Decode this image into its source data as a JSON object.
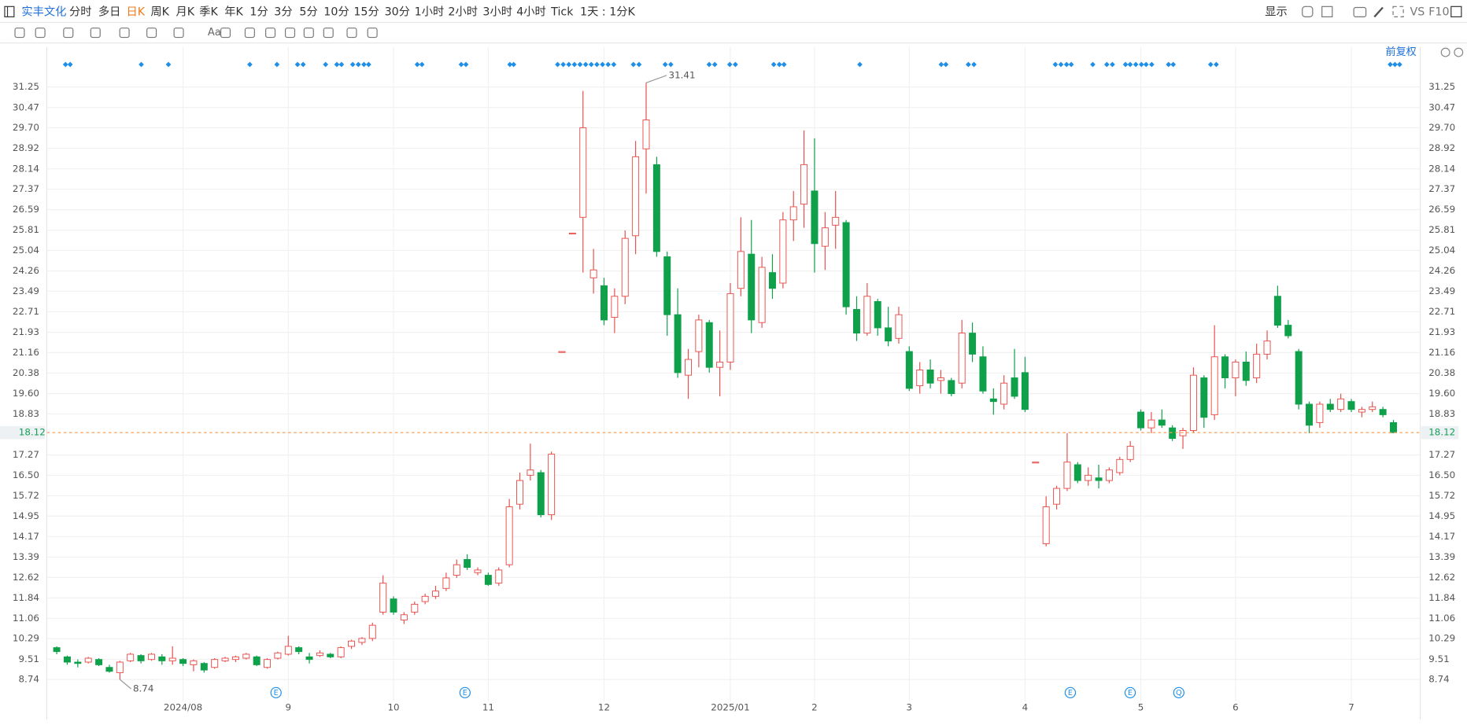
{
  "toolbar": {
    "stock": "实丰文化",
    "periods": [
      "分时",
      "多日",
      "日K",
      "周K",
      "月K",
      "季K",
      "年K",
      "1分",
      "3分",
      "5分",
      "10分",
      "15分",
      "30分",
      "1小时",
      "2小时",
      "3小时",
      "4小时",
      "Tick"
    ],
    "range": "1天 : 1分K",
    "display": "显示",
    "vs": "VS",
    "f10": "F10",
    "text_tool": "Aa"
  },
  "adjust": "前复权",
  "events": [
    "E",
    "E",
    "E",
    "E",
    "Q"
  ],
  "chart_data": {
    "type": "candlestick",
    "up_color": "#e8504c",
    "down_color": "#0fa04a",
    "grid": true,
    "categories": [
      null,
      null,
      null,
      null,
      null,
      null,
      null,
      null,
      null,
      null,
      null,
      null,
      "2024/08",
      null,
      null,
      null,
      null,
      null,
      null,
      null,
      null,
      null,
      "9",
      null,
      null,
      null,
      null,
      null,
      null,
      null,
      null,
      null,
      "10",
      null,
      null,
      null,
      null,
      null,
      null,
      null,
      null,
      "11",
      null,
      null,
      null,
      null,
      null,
      null,
      null,
      null,
      null,
      null,
      "12",
      null,
      null,
      null,
      null,
      null,
      null,
      null,
      null,
      null,
      null,
      null,
      "2025/01",
      null,
      null,
      null,
      null,
      null,
      null,
      null,
      "2",
      null,
      null,
      null,
      null,
      null,
      null,
      null,
      null,
      "3",
      null,
      null,
      null,
      null,
      null,
      null,
      null,
      null,
      null,
      null,
      "4",
      null,
      null,
      null,
      null,
      null,
      null,
      null,
      null,
      null,
      null,
      "5",
      null,
      null,
      null,
      null,
      null,
      null,
      null,
      null,
      "6",
      null,
      null,
      null,
      null,
      null,
      null,
      null,
      null,
      null,
      null,
      "7",
      null,
      null,
      null,
      null
    ],
    "open": [
      9.95,
      9.6,
      9.4,
      9.4,
      9.5,
      9.2,
      9.0,
      9.45,
      9.65,
      9.5,
      9.6,
      9.45,
      9.5,
      9.3,
      9.35,
      9.2,
      9.45,
      9.5,
      9.55,
      9.6,
      9.2,
      9.55,
      9.7,
      9.95,
      9.6,
      9.65,
      9.7,
      9.6,
      10.0,
      10.15,
      10.3,
      11.3,
      11.8,
      11.0,
      11.3,
      11.7,
      11.9,
      12.2,
      12.7,
      13.3,
      12.8,
      12.7,
      12.4,
      13.1,
      15.4,
      16.5,
      16.6,
      15.0,
      21.2,
      25.7,
      26.3,
      24.0,
      23.7,
      22.5,
      23.3,
      25.6,
      28.9,
      28.3,
      24.8,
      22.6,
      20.3,
      21.2,
      22.3,
      20.6,
      20.8,
      23.6,
      24.9,
      22.3,
      24.2,
      23.8,
      26.2,
      26.8,
      27.3,
      25.2,
      26.0,
      26.1,
      22.8,
      21.9,
      23.1,
      22.1,
      21.7,
      21.2,
      19.9,
      20.5,
      20.1,
      20.1,
      20.0,
      21.9,
      21.0,
      19.4,
      19.2,
      20.2,
      20.4,
      17.0,
      13.9,
      15.4,
      16.0,
      16.9,
      16.3,
      16.4,
      16.3,
      16.6,
      17.1,
      18.9,
      18.3,
      18.6,
      18.3,
      18.0,
      18.2,
      20.2,
      18.8,
      21.0,
      20.2,
      20.8,
      20.2,
      21.1,
      23.3,
      22.2,
      21.2,
      19.2,
      18.5,
      19.2,
      19.0,
      19.3,
      18.9,
      19.0,
      19.0,
      18.5
    ],
    "high": [
      10.0,
      9.65,
      9.5,
      9.6,
      9.55,
      9.3,
      9.45,
      9.75,
      9.7,
      9.75,
      9.7,
      10.0,
      9.55,
      9.5,
      9.4,
      9.55,
      9.6,
      9.65,
      9.75,
      9.65,
      9.55,
      9.8,
      10.4,
      10.0,
      9.75,
      9.85,
      9.75,
      10.0,
      10.25,
      10.35,
      10.9,
      12.7,
      11.9,
      11.3,
      11.7,
      12.0,
      12.3,
      12.8,
      13.3,
      13.5,
      13.0,
      12.8,
      13.0,
      15.6,
      16.6,
      17.7,
      16.7,
      17.4,
      21.2,
      25.7,
      31.1,
      25.1,
      24.0,
      23.6,
      25.8,
      29.2,
      31.41,
      28.6,
      25.0,
      23.6,
      21.3,
      22.6,
      22.4,
      22.0,
      23.8,
      26.3,
      26.2,
      24.8,
      24.9,
      26.5,
      27.3,
      29.6,
      29.3,
      26.5,
      27.3,
      26.2,
      23.3,
      23.8,
      23.2,
      22.9,
      22.9,
      21.4,
      20.8,
      20.9,
      20.5,
      20.2,
      22.4,
      22.3,
      21.4,
      19.8,
      20.3,
      21.3,
      21.0,
      17.0,
      15.7,
      16.1,
      18.1,
      17.0,
      16.8,
      16.9,
      16.8,
      17.2,
      17.8,
      19.0,
      18.9,
      19.0,
      18.4,
      18.3,
      20.6,
      20.3,
      22.2,
      21.1,
      20.9,
      21.2,
      21.5,
      22.0,
      23.7,
      22.4,
      21.3,
      19.3,
      19.3,
      19.4,
      19.6,
      19.4,
      19.1,
      19.3,
      19.1,
      18.6
    ],
    "low": [
      9.7,
      9.3,
      9.2,
      9.35,
      9.25,
      9.0,
      8.74,
      9.4,
      9.35,
      9.45,
      9.3,
      9.3,
      9.25,
      9.05,
      9.0,
      9.15,
      9.4,
      9.4,
      9.5,
      9.25,
      9.15,
      9.5,
      9.65,
      9.7,
      9.35,
      9.6,
      9.55,
      9.55,
      9.9,
      10.05,
      10.2,
      11.2,
      11.2,
      10.85,
      11.2,
      11.6,
      11.8,
      12.1,
      12.6,
      12.9,
      12.7,
      12.3,
      12.3,
      13.0,
      15.2,
      16.3,
      14.9,
      14.8,
      21.2,
      25.7,
      24.2,
      23.4,
      22.2,
      21.9,
      23.0,
      24.9,
      27.2,
      24.8,
      21.8,
      20.2,
      19.4,
      20.6,
      20.4,
      19.5,
      20.5,
      23.3,
      21.9,
      22.1,
      23.2,
      23.6,
      25.4,
      25.9,
      24.2,
      24.3,
      25.1,
      22.6,
      21.6,
      21.8,
      21.8,
      21.4,
      21.5,
      19.7,
      19.6,
      19.8,
      19.6,
      19.5,
      19.8,
      20.8,
      19.6,
      18.8,
      19.0,
      19.4,
      18.9,
      17.0,
      13.8,
      15.2,
      15.9,
      16.2,
      16.1,
      16.0,
      16.2,
      16.5,
      17.0,
      18.2,
      18.1,
      18.3,
      17.8,
      17.5,
      18.1,
      18.3,
      18.6,
      19.8,
      19.5,
      19.9,
      20.0,
      20.9,
      22.1,
      21.7,
      19.0,
      18.1,
      18.3,
      18.9,
      18.9,
      18.9,
      18.7,
      18.9,
      18.7,
      18.1
    ],
    "close": [
      9.8,
      9.4,
      9.35,
      9.55,
      9.3,
      9.05,
      9.4,
      9.7,
      9.45,
      9.7,
      9.45,
      9.55,
      9.35,
      9.45,
      9.1,
      9.5,
      9.55,
      9.6,
      9.7,
      9.3,
      9.5,
      9.75,
      10.0,
      9.8,
      9.5,
      9.75,
      9.6,
      9.95,
      10.2,
      10.3,
      10.8,
      12.4,
      11.3,
      11.2,
      11.6,
      11.9,
      12.1,
      12.6,
      13.1,
      13.0,
      12.9,
      12.35,
      12.9,
      15.3,
      16.3,
      16.7,
      15.0,
      17.3,
      21.2,
      25.7,
      29.7,
      24.3,
      22.4,
      23.3,
      25.5,
      28.6,
      30.0,
      25.0,
      22.6,
      20.4,
      20.9,
      22.4,
      20.6,
      20.8,
      23.4,
      25.0,
      22.4,
      24.4,
      23.6,
      26.2,
      26.7,
      28.3,
      25.3,
      25.9,
      26.3,
      22.9,
      21.9,
      23.3,
      22.1,
      21.6,
      22.6,
      19.8,
      20.5,
      20.0,
      20.2,
      19.6,
      21.9,
      21.1,
      19.7,
      19.3,
      20.0,
      19.5,
      19.0,
      17.0,
      15.3,
      16.0,
      17.0,
      16.3,
      16.5,
      16.3,
      16.7,
      17.1,
      17.6,
      18.3,
      18.6,
      18.4,
      17.9,
      18.2,
      20.3,
      18.7,
      21.0,
      20.2,
      20.8,
      20.1,
      21.1,
      21.6,
      22.2,
      21.8,
      19.2,
      18.4,
      19.2,
      19.0,
      19.4,
      19.0,
      19.0,
      19.1,
      18.8,
      18.12
    ],
    "ylim": [
      7.21,
      32.78
    ],
    "yticks": [
      8.74,
      9.51,
      10.29,
      11.06,
      11.84,
      12.62,
      13.39,
      14.17,
      14.95,
      15.72,
      {
        "value": 16.5,
        "label": "16.50"
      },
      17.27,
      18.83,
      {
        "value": 19.6,
        "label": "19.60"
      },
      20.38,
      21.16,
      21.93,
      22.71,
      23.49,
      24.26,
      25.04,
      25.81,
      26.59,
      27.37,
      28.14,
      28.92,
      {
        "value": 29.7,
        "label": "29.70"
      },
      30.47,
      31.25
    ]
  }
}
